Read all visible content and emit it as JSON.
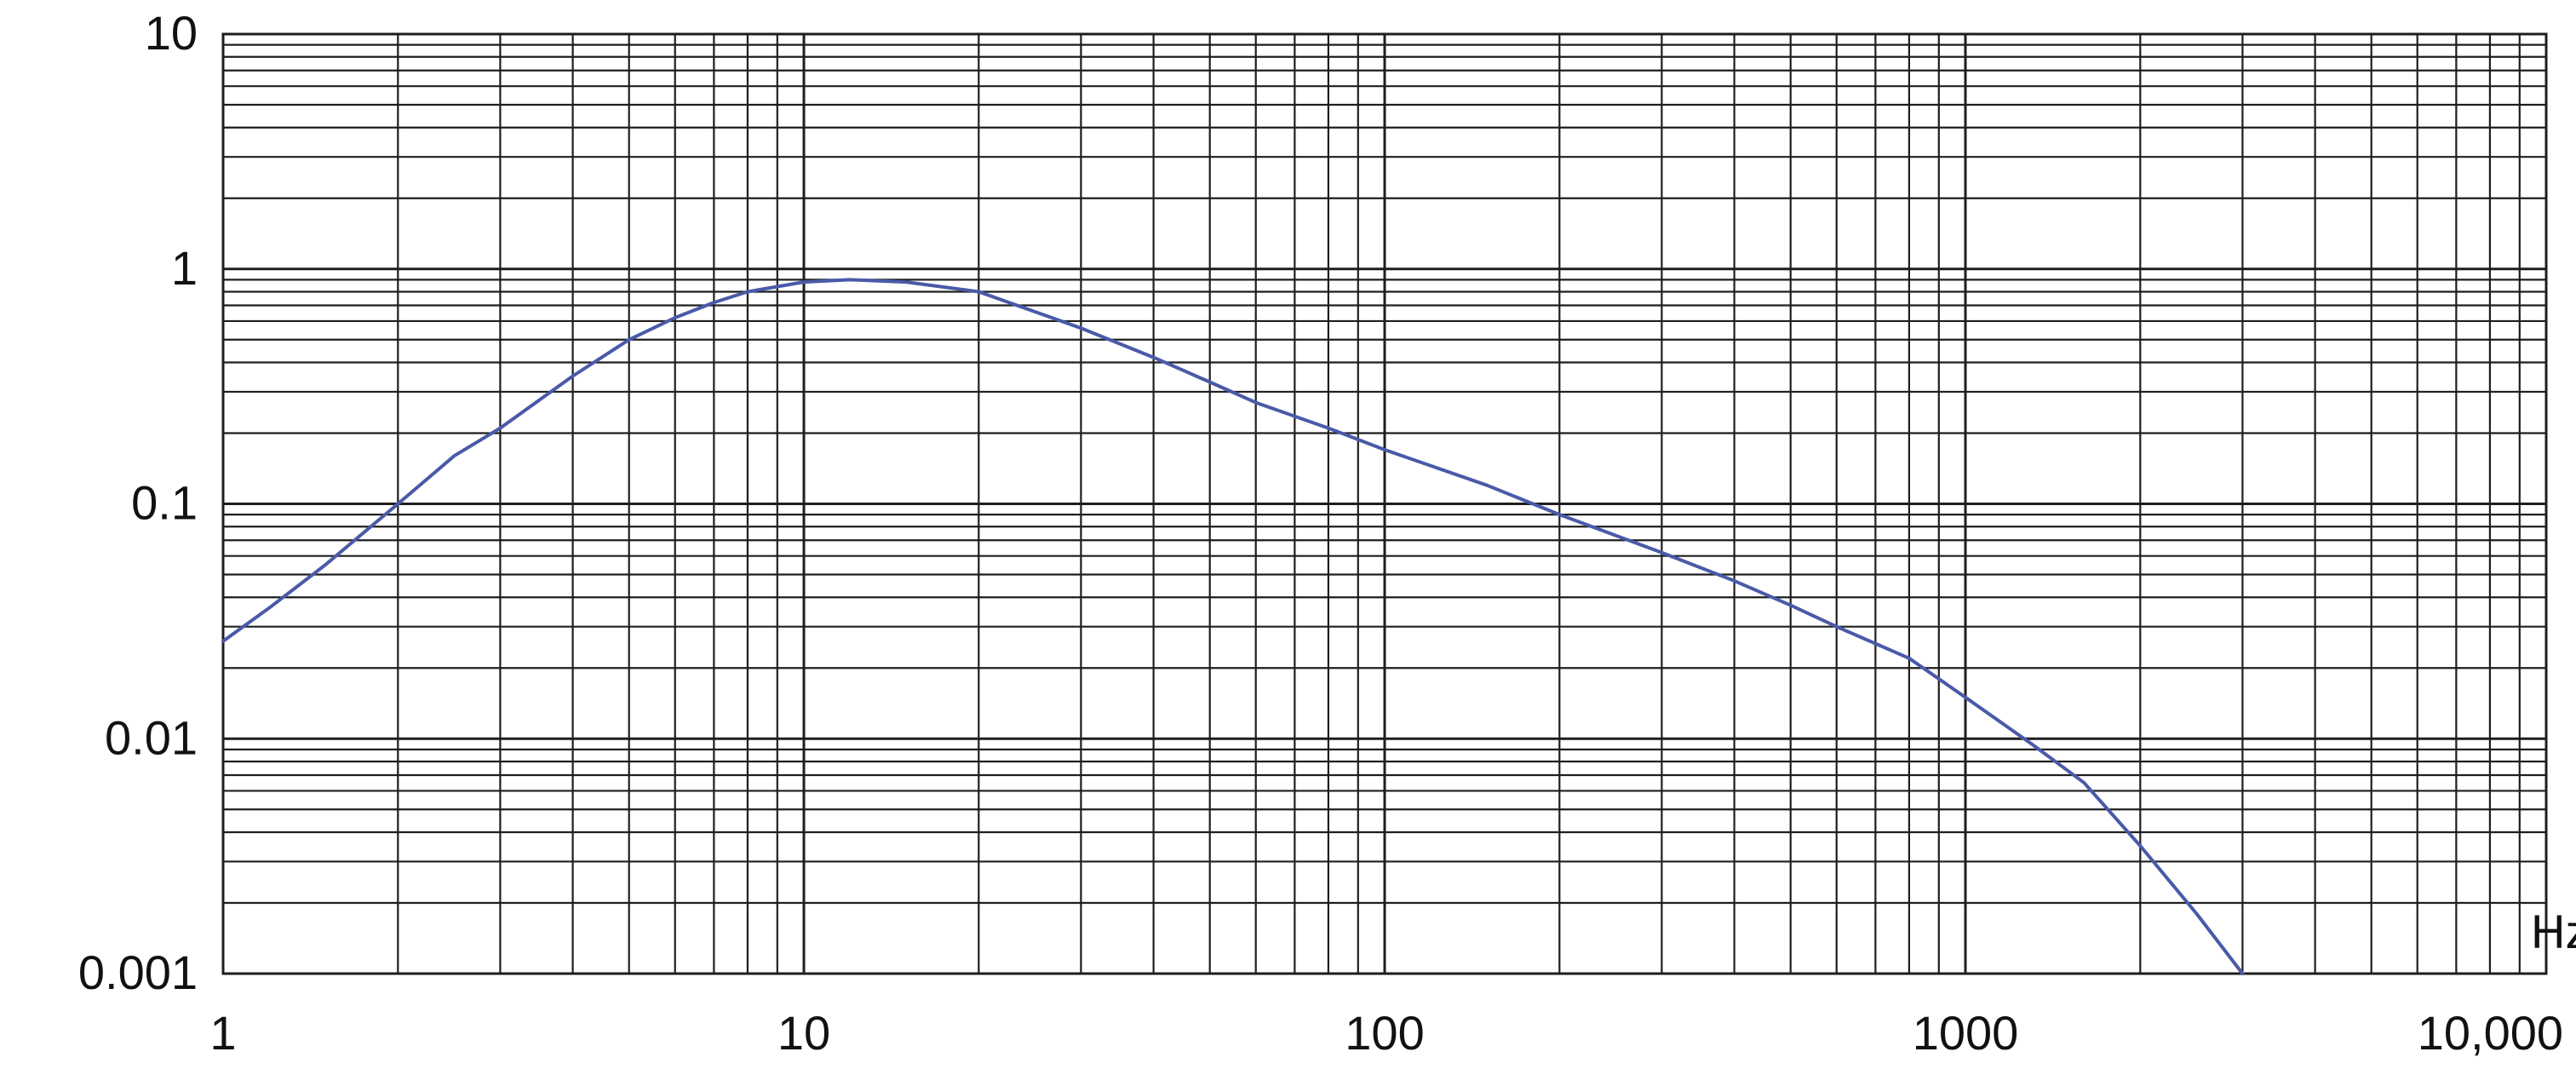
{
  "chart_data": {
    "type": "line",
    "title": "",
    "xlabel": "",
    "ylabel": "",
    "x_unit": "Hz",
    "x_scale": "log",
    "y_scale": "log",
    "xlim": [
      1,
      10000
    ],
    "ylim": [
      0.001,
      10
    ],
    "grid": true,
    "x_ticks": [
      {
        "value": 1,
        "label": "1"
      },
      {
        "value": 10,
        "label": "10"
      },
      {
        "value": 100,
        "label": "100"
      },
      {
        "value": 1000,
        "label": "1000"
      },
      {
        "value": 10000,
        "label": "10,000"
      }
    ],
    "y_ticks": [
      {
        "value": 10,
        "label": "10"
      },
      {
        "value": 1,
        "label": "1"
      },
      {
        "value": 0.1,
        "label": "0.1"
      },
      {
        "value": 0.01,
        "label": "0.01"
      },
      {
        "value": 0.001,
        "label": "0.001"
      }
    ],
    "series": [
      {
        "color": "#4a5aa8",
        "x": [
          1,
          1.2,
          1.5,
          2,
          2.5,
          3,
          4,
          5,
          6,
          7,
          8,
          10,
          12,
          15,
          20,
          30,
          40,
          50,
          60,
          80,
          100,
          150,
          200,
          300,
          400,
          500,
          600,
          800,
          1000,
          1300,
          1600,
          2000,
          2500,
          3000
        ],
        "y": [
          0.026,
          0.036,
          0.055,
          0.1,
          0.16,
          0.21,
          0.35,
          0.5,
          0.62,
          0.72,
          0.8,
          0.88,
          0.9,
          0.88,
          0.8,
          0.56,
          0.42,
          0.33,
          0.27,
          0.21,
          0.17,
          0.12,
          0.09,
          0.062,
          0.047,
          0.037,
          0.03,
          0.022,
          0.015,
          0.0095,
          0.0065,
          0.0035,
          0.0018,
          0.001
        ]
      }
    ]
  }
}
